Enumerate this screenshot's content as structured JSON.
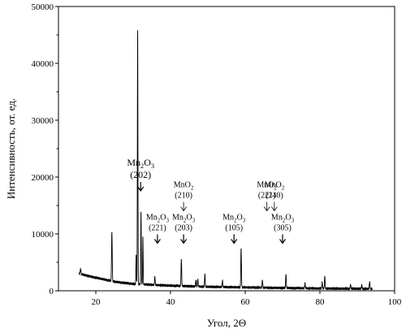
{
  "chart_data": {
    "type": "line",
    "xlabel": "Угол, 2Θ",
    "ylabel": "Интенсивность, от. ед.",
    "xlim": [
      10,
      100
    ],
    "ylim": [
      0,
      50000
    ],
    "x_ticks": [
      20,
      40,
      60,
      80,
      100
    ],
    "y_ticks": [
      0,
      10000,
      20000,
      30000,
      40000,
      50000
    ],
    "grid": false,
    "color": "#000000",
    "background": [
      [
        15.5,
        3000
      ],
      [
        20,
        2300
      ],
      [
        25,
        1600
      ],
      [
        30,
        1200
      ],
      [
        40,
        900
      ],
      [
        50,
        700
      ],
      [
        60,
        600
      ],
      [
        70,
        500
      ],
      [
        80,
        400
      ],
      [
        94,
        350
      ]
    ],
    "peaks": [
      {
        "x": 15.9,
        "y": 3800,
        "w": 0.15
      },
      {
        "x": 24.3,
        "y": 10300,
        "w": 0.13
      },
      {
        "x": 30.8,
        "y": 6500,
        "w": 0.1
      },
      {
        "x": 31.2,
        "y": 45800,
        "w": 0.1
      },
      {
        "x": 32.1,
        "y": 14000,
        "w": 0.1
      },
      {
        "x": 32.6,
        "y": 9500,
        "w": 0.1
      },
      {
        "x": 35.8,
        "y": 2500,
        "w": 0.12
      },
      {
        "x": 42.9,
        "y": 5600,
        "w": 0.12
      },
      {
        "x": 46.8,
        "y": 1900,
        "w": 0.12
      },
      {
        "x": 47.3,
        "y": 2100,
        "w": 0.12
      },
      {
        "x": 49.2,
        "y": 2900,
        "w": 0.12
      },
      {
        "x": 53.9,
        "y": 1800,
        "w": 0.12
      },
      {
        "x": 58.9,
        "y": 7600,
        "w": 0.12
      },
      {
        "x": 64.6,
        "y": 1900,
        "w": 0.12
      },
      {
        "x": 70.9,
        "y": 2900,
        "w": 0.12
      },
      {
        "x": 76.0,
        "y": 1300,
        "w": 0.12
      },
      {
        "x": 80.6,
        "y": 1500,
        "w": 0.12
      },
      {
        "x": 81.3,
        "y": 2600,
        "w": 0.12
      },
      {
        "x": 88.2,
        "y": 1100,
        "w": 0.12
      },
      {
        "x": 91.2,
        "y": 1000,
        "w": 0.12
      },
      {
        "x": 93.3,
        "y": 1600,
        "w": 0.12
      }
    ],
    "annotations": [
      {
        "formula": [
          "Mn",
          "2",
          "O",
          "3"
        ],
        "hkl": "(202)",
        "x": 32.0,
        "y": 22000,
        "arrow": "down",
        "size": "large"
      },
      {
        "formula": [
          "MnO",
          "2",
          "",
          ""
        ],
        "hkl": "(210)",
        "x": 43.5,
        "y": 18200,
        "arrow": "down-thin",
        "size": "small"
      },
      {
        "formula": [
          "MnO",
          "2",
          "",
          ""
        ],
        "hkl": "(221)",
        "x": 65.8,
        "y": 18200,
        "arrow": "down-thin",
        "size": "small"
      },
      {
        "formula": [
          "MnO",
          "2",
          "",
          ""
        ],
        "hkl": "(240)",
        "x": 67.8,
        "y": 18200,
        "arrow": "down-thin",
        "size": "small"
      },
      {
        "formula": [
          "Mn",
          "2",
          "O",
          "3"
        ],
        "hkl": "(221)",
        "x": 36.5,
        "y": 12500,
        "arrow": "down",
        "size": "small"
      },
      {
        "formula": [
          "Mn",
          "2",
          "O",
          "3"
        ],
        "hkl": "(203)",
        "x": 43.5,
        "y": 12500,
        "arrow": "down",
        "size": "small"
      },
      {
        "formula": [
          "Mn",
          "2",
          "O",
          "3"
        ],
        "hkl": "(105)",
        "x": 57.0,
        "y": 12500,
        "arrow": "down",
        "size": "small"
      },
      {
        "formula": [
          "Mn",
          "2",
          "O",
          "3"
        ],
        "hkl": "(305)",
        "x": 70.0,
        "y": 12500,
        "arrow": "down",
        "size": "small"
      }
    ]
  }
}
